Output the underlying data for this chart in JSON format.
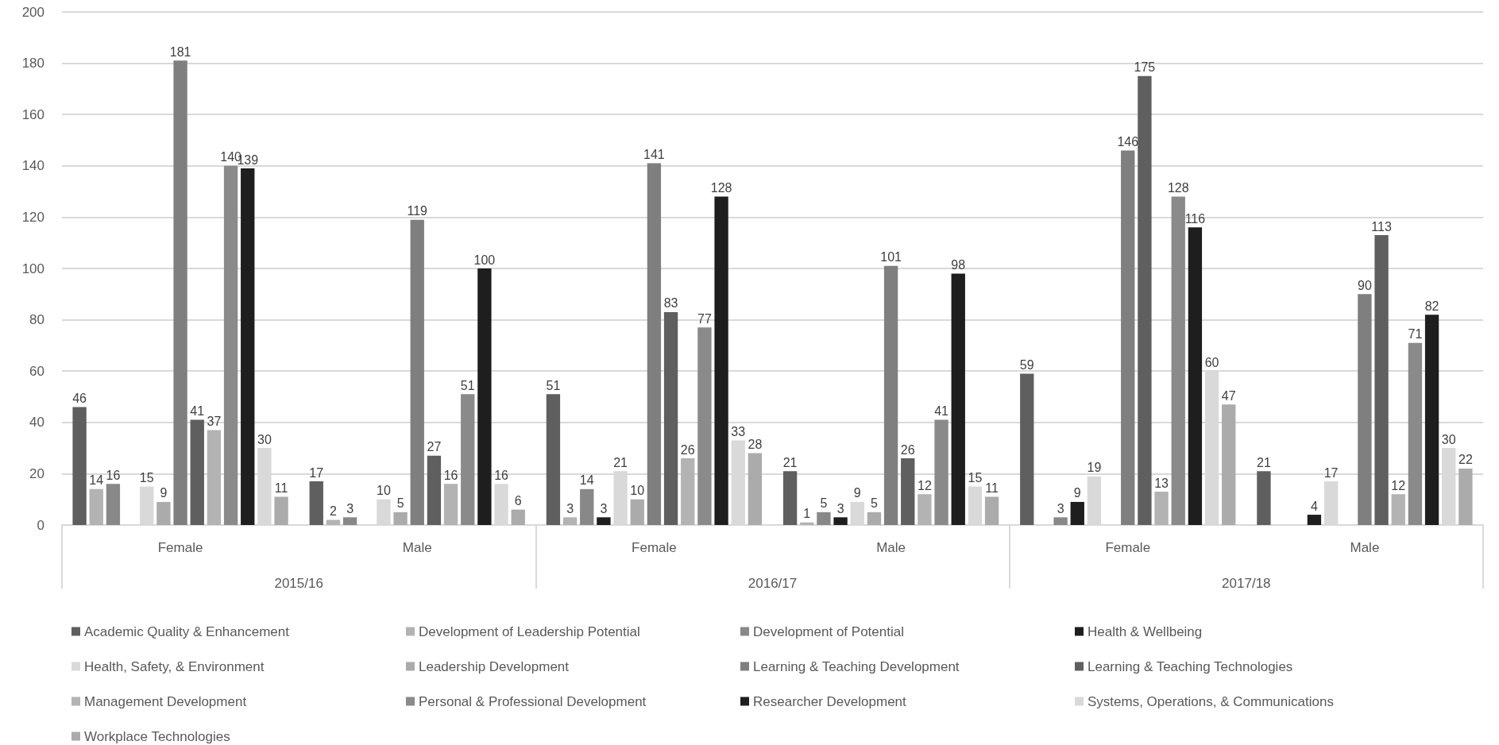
{
  "chart_data": {
    "type": "bar",
    "categories": [
      "Female",
      "Male",
      "Female",
      "Male",
      "Female",
      "Male"
    ],
    "annotations": [
      "2015/16",
      "2016/17",
      "2017/18"
    ],
    "series": [
      {
        "name": "Academic Quality & Enhancement",
        "color": "#5f5f5f",
        "values": [
          46,
          17,
          51,
          21,
          59,
          21
        ]
      },
      {
        "name": "Development of Leadership Potential",
        "color": "#b3b3b3",
        "values": [
          14,
          2,
          3,
          1,
          null,
          null
        ]
      },
      {
        "name": "Development of Potential",
        "color": "#888888",
        "values": [
          16,
          3,
          14,
          5,
          3,
          null
        ]
      },
      {
        "name": "Health & Wellbeing",
        "color": "#1e1e1e",
        "values": [
          null,
          null,
          3,
          3,
          9,
          4
        ]
      },
      {
        "name": "Health, Safety, & Environment",
        "color": "#d9d9d9",
        "values": [
          15,
          10,
          21,
          9,
          19,
          17
        ]
      },
      {
        "name": "Leadership Development",
        "color": "#ababab",
        "values": [
          9,
          5,
          10,
          5,
          null,
          null
        ]
      },
      {
        "name": "Learning & Teaching Development",
        "color": "#7f7f7f",
        "values": [
          181,
          119,
          141,
          101,
          146,
          90
        ]
      },
      {
        "name": "Learning & Teaching Technologies",
        "color": "#5f5f5f",
        "values": [
          41,
          27,
          83,
          26,
          175,
          113
        ]
      },
      {
        "name": "Management Development",
        "color": "#b3b3b3",
        "values": [
          37,
          16,
          26,
          12,
          13,
          12
        ]
      },
      {
        "name": "Personal & Professional Development",
        "color": "#8a8a8a",
        "values": [
          140,
          51,
          77,
          41,
          128,
          71
        ]
      },
      {
        "name": "Researcher Development",
        "color": "#1e1e1e",
        "values": [
          139,
          100,
          128,
          98,
          116,
          82
        ]
      },
      {
        "name": "Systems, Operations, & Communications",
        "color": "#d9d9d9",
        "values": [
          30,
          16,
          33,
          15,
          60,
          30
        ]
      },
      {
        "name": "Workplace Technologies",
        "color": "#ababab",
        "values": [
          11,
          6,
          28,
          11,
          47,
          22
        ]
      }
    ],
    "ylim": [
      0,
      200
    ],
    "yticks": [
      0,
      20,
      40,
      60,
      80,
      100,
      120,
      140,
      160,
      180,
      200
    ],
    "grid": "y",
    "data_labels": true,
    "legend": "bottom"
  }
}
